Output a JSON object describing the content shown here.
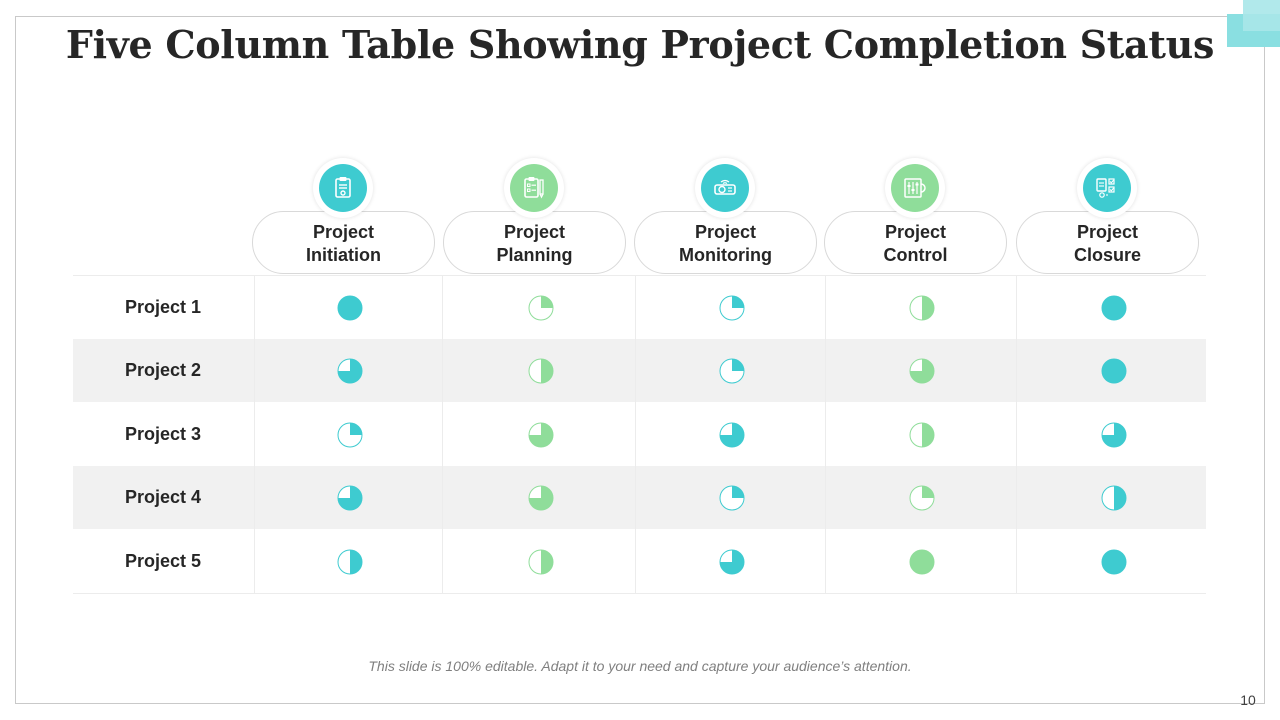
{
  "title": "Five Column Table Showing Project Completion Status",
  "colors": {
    "teal": "#3ecbd0",
    "green": "#8fdd9a"
  },
  "columns": [
    {
      "line1": "Project",
      "line2": "Initiation",
      "icon": "clipboard-icon",
      "color": "#3ecbd0"
    },
    {
      "line1": "Project",
      "line2": "Planning",
      "icon": "checklist-pencil-icon",
      "color": "#8fdd9a"
    },
    {
      "line1": "Project",
      "line2": "Monitoring",
      "icon": "projector-icon",
      "color": "#3ecbd0"
    },
    {
      "line1": "Project",
      "line2": "Control",
      "icon": "sliders-gear-icon",
      "color": "#8fdd9a"
    },
    {
      "line1": "Project",
      "line2": "Closure",
      "icon": "tasks-checkboxes-icon",
      "color": "#3ecbd0"
    }
  ],
  "rows": [
    {
      "label": "Project 1",
      "completion": [
        1.0,
        0.25,
        0.25,
        0.5,
        1.0
      ]
    },
    {
      "label": "Project 2",
      "completion": [
        0.75,
        0.5,
        0.25,
        0.75,
        1.0
      ]
    },
    {
      "label": "Project 3",
      "completion": [
        0.25,
        0.75,
        0.75,
        0.5,
        0.75
      ]
    },
    {
      "label": "Project 4",
      "completion": [
        0.75,
        0.75,
        0.25,
        0.25,
        0.5
      ]
    },
    {
      "label": "Project 5",
      "completion": [
        0.5,
        0.5,
        0.75,
        1.0,
        1.0
      ]
    }
  ],
  "footer": "This slide is 100% editable. Adapt it to your need and capture your audience’s attention.",
  "page_number": "10"
}
